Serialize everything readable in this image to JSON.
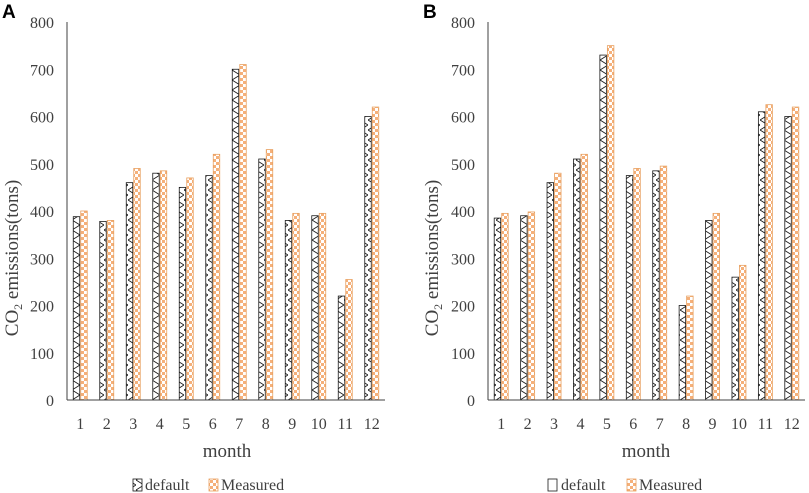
{
  "colors": {
    "default_edge": "#1a1a1a",
    "measured_edge": "#e8a060",
    "measured_fill": "#f5b07a",
    "axis": "#404040",
    "text": "#404040"
  },
  "chart_data": [
    {
      "panel_label": "A",
      "type": "bar",
      "xlabel": "month",
      "ylabel_main": "CO",
      "ylabel_sub": "2",
      "ylabel_rest": " emissions(tons)",
      "ylim": [
        0,
        800
      ],
      "yticks": [
        "0",
        "100",
        "200",
        "300",
        "400",
        "500",
        "600",
        "700",
        "800"
      ],
      "categories": [
        "1",
        "2",
        "3",
        "4",
        "5",
        "6",
        "7",
        "8",
        "9",
        "10",
        "11",
        "12"
      ],
      "series": [
        {
          "name": "default",
          "values": [
            388,
            378,
            460,
            480,
            450,
            475,
            700,
            510,
            380,
            390,
            220,
            600
          ]
        },
        {
          "name": "Measured",
          "values": [
            400,
            380,
            490,
            485,
            470,
            520,
            710,
            530,
            395,
            395,
            255,
            620
          ]
        }
      ],
      "legend": [
        "default",
        "Measured"
      ],
      "legend_position": "bottom"
    },
    {
      "panel_label": "B",
      "type": "bar",
      "xlabel": "month",
      "ylabel_main": "CO",
      "ylabel_sub": "2",
      "ylabel_rest": " emissions(tons)",
      "ylim": [
        0,
        800
      ],
      "yticks": [
        "0",
        "100",
        "200",
        "300",
        "400",
        "500",
        "600",
        "700",
        "800"
      ],
      "categories": [
        "1",
        "2",
        "3",
        "4",
        "5",
        "6",
        "7",
        "8",
        "9",
        "10",
        "11",
        "12"
      ],
      "series": [
        {
          "name": "default",
          "values": [
            385,
            390,
            460,
            510,
            730,
            475,
            485,
            200,
            380,
            260,
            610,
            600
          ]
        },
        {
          "name": "Measured",
          "values": [
            395,
            398,
            480,
            520,
            750,
            490,
            495,
            220,
            395,
            285,
            625,
            620
          ]
        }
      ],
      "legend": [
        "default",
        "Measured"
      ],
      "legend_position": "bottom"
    }
  ]
}
